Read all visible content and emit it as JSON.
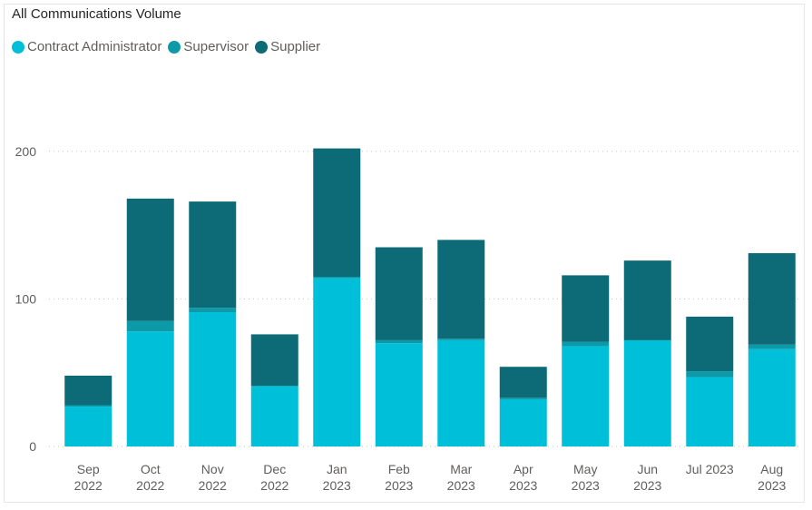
{
  "chart_data": {
    "type": "bar",
    "stacked": true,
    "title": "All Communications Volume",
    "xlabel": "",
    "ylabel": "",
    "ylim": [
      0,
      230
    ],
    "yticks": [
      0,
      100,
      200
    ],
    "grid": true,
    "legend_position": "top-left",
    "categories": [
      [
        "Sep",
        "2022"
      ],
      [
        "Oct",
        "2022"
      ],
      [
        "Nov",
        "2022"
      ],
      [
        "Dec",
        "2022"
      ],
      [
        "Jan",
        "2023"
      ],
      [
        "Feb",
        "2023"
      ],
      [
        "Mar",
        "2023"
      ],
      [
        "Apr",
        "2023"
      ],
      [
        "May",
        "2023"
      ],
      [
        "Jun",
        "2023"
      ],
      [
        "Jul 2023"
      ],
      [
        "Aug",
        "2023"
      ]
    ],
    "series": [
      {
        "name": "Contract Administrator",
        "color": "#00bfd8",
        "values": [
          27,
          78,
          91,
          41,
          114,
          70,
          72,
          32,
          68,
          72,
          47,
          66
        ]
      },
      {
        "name": "Supervisor",
        "color": "#0d9aa8",
        "values": [
          1,
          7,
          3,
          0,
          1,
          2,
          1,
          1,
          3,
          0,
          4,
          3
        ]
      },
      {
        "name": "Supplier",
        "color": "#0c6b76",
        "values": [
          20,
          83,
          72,
          35,
          87,
          63,
          67,
          21,
          45,
          54,
          37,
          62
        ]
      }
    ]
  }
}
